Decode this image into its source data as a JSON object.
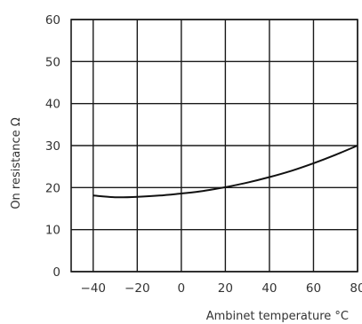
{
  "chart_data": {
    "type": "line",
    "title": "",
    "xlabel": "Ambinet temperature °C",
    "ylabel": "On resistance Ω",
    "xlim": [
      -50,
      80
    ],
    "ylim": [
      0,
      60
    ],
    "xticks": [
      -40,
      -20,
      0,
      20,
      40,
      60,
      80
    ],
    "xtick_labels": [
      "−40",
      "−20",
      "0",
      "20",
      "40",
      "60",
      "80"
    ],
    "yticks": [
      0,
      10,
      20,
      30,
      40,
      50,
      60
    ],
    "ytick_labels": [
      "0",
      "10",
      "20",
      "30",
      "40",
      "50",
      "60"
    ],
    "grid": true,
    "series": [
      {
        "x": [
          -40,
          -30,
          -20,
          -10,
          0,
          10,
          20,
          30,
          40,
          50,
          60,
          70,
          80
        ],
        "y": [
          18.1,
          17.7,
          17.8,
          18.1,
          18.6,
          19.2,
          20.1,
          21.2,
          22.5,
          24.0,
          25.8,
          27.8,
          30.0
        ]
      }
    ],
    "colors": {
      "line": "#111111",
      "grid": "#1a1a1a",
      "text": "#333333"
    }
  }
}
